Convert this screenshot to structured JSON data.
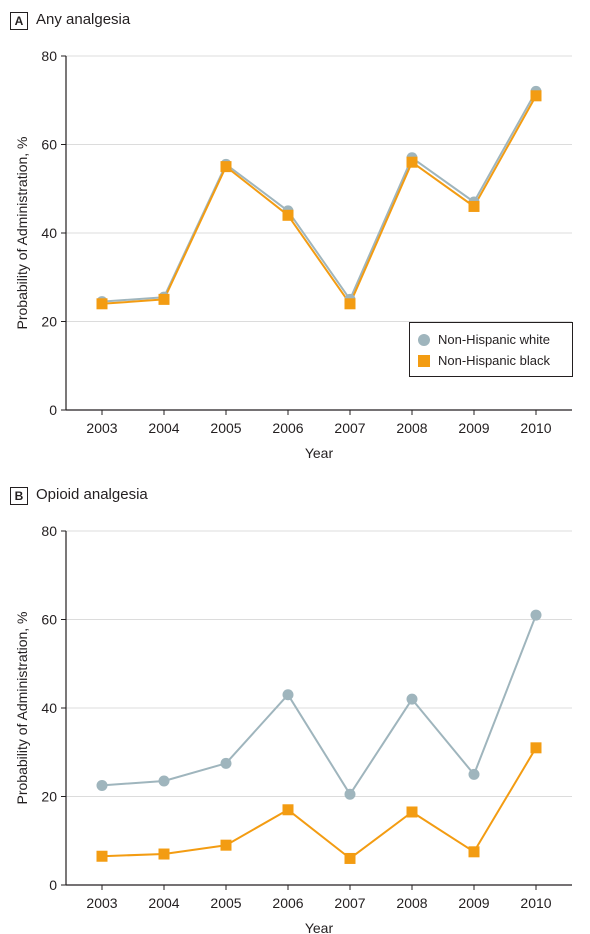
{
  "colors": {
    "white_series": "#9fb5bd",
    "black_series": "#f39c12",
    "grid": "#dcdcdc",
    "axis": "#231f20"
  },
  "chart_data": [
    {
      "panel_label": "A",
      "title": "Any analgesia",
      "type": "line",
      "xlabel": "Year",
      "ylabel": "Probability of Administration, %",
      "categories": [
        "2003",
        "2004",
        "2005",
        "2006",
        "2007",
        "2008",
        "2009",
        "2010"
      ],
      "yticks": [
        "0",
        "20",
        "40",
        "60",
        "80"
      ],
      "ylim": [
        0,
        80
      ],
      "grid": true,
      "legend_position": "bottom-right",
      "series": [
        {
          "name": "Non-Hispanic white",
          "marker": "circle",
          "values": [
            24.5,
            25.5,
            55.5,
            45,
            25,
            57,
            47,
            72
          ]
        },
        {
          "name": "Non-Hispanic black",
          "marker": "square",
          "values": [
            24,
            25,
            55,
            44,
            24,
            56,
            46,
            71
          ]
        }
      ]
    },
    {
      "panel_label": "B",
      "title": "Opioid analgesia",
      "type": "line",
      "xlabel": "Year",
      "ylabel": "Probability of Administration, %",
      "categories": [
        "2003",
        "2004",
        "2005",
        "2006",
        "2007",
        "2008",
        "2009",
        "2010"
      ],
      "yticks": [
        "0",
        "20",
        "40",
        "60",
        "80"
      ],
      "ylim": [
        0,
        80
      ],
      "grid": true,
      "series": [
        {
          "name": "Non-Hispanic white",
          "marker": "circle",
          "values": [
            22.5,
            23.5,
            27.5,
            43,
            20.5,
            42,
            25,
            61
          ]
        },
        {
          "name": "Non-Hispanic black",
          "marker": "square",
          "values": [
            6.5,
            7,
            9,
            17,
            6,
            16.5,
            7.5,
            31
          ]
        }
      ]
    }
  ]
}
